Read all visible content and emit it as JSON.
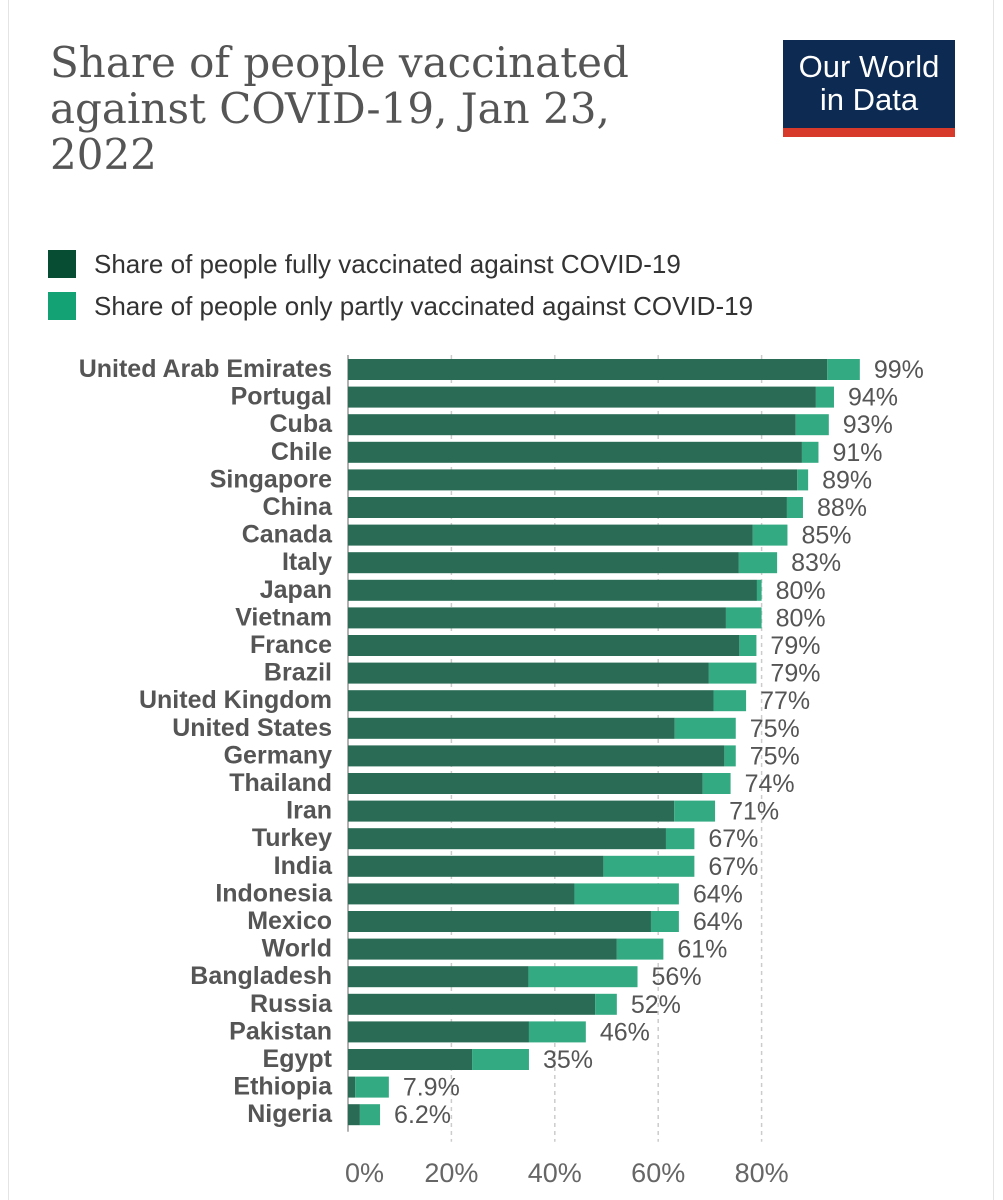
{
  "header": {
    "title": "Share of people vaccinated against COVID-19, Jan 23, 2022",
    "logo_line1": "Our World",
    "logo_line2": "in Data"
  },
  "colors": {
    "fully": "#2a6b55",
    "partly": "#33aa82",
    "fully_legend": "#064d33",
    "partly_legend": "#13a274",
    "logo_bg": "#0d2a52",
    "logo_accent": "#d73a2a"
  },
  "chart_data": {
    "type": "bar",
    "orientation": "horizontal",
    "stacked": true,
    "title": "Share of people vaccinated against COVID-19, Jan 23, 2022",
    "legend_position": "top",
    "grid": true,
    "xlim": [
      0,
      100
    ],
    "x_ticks": [
      "0%",
      "20%",
      "40%",
      "60%",
      "80%"
    ],
    "categories": [
      "United Arab Emirates",
      "Portugal",
      "Cuba",
      "Chile",
      "Singapore",
      "China",
      "Canada",
      "Italy",
      "Japan",
      "Vietnam",
      "France",
      "Brazil",
      "United Kingdom",
      "United States",
      "Germany",
      "Thailand",
      "Iran",
      "Turkey",
      "India",
      "Indonesia",
      "Mexico",
      "World",
      "Bangladesh",
      "Russia",
      "Pakistan",
      "Egypt",
      "Ethiopia",
      "Nigeria"
    ],
    "series": [
      {
        "name": "Share of people fully vaccinated against COVID-19",
        "values": [
          92.7,
          90.5,
          86.6,
          87.8,
          86.9,
          84.9,
          78.3,
          75.6,
          79.1,
          73.1,
          75.7,
          69.8,
          70.7,
          63.2,
          72.8,
          68.6,
          63.1,
          61.5,
          49.4,
          43.8,
          58.6,
          52.0,
          34.9,
          47.8,
          35.0,
          24.0,
          1.4,
          2.3
        ]
      },
      {
        "name": "Share of people only partly vaccinated against COVID-19",
        "values": [
          6.3,
          3.5,
          6.4,
          3.2,
          2.1,
          3.1,
          6.7,
          7.4,
          0.9,
          6.9,
          3.3,
          9.2,
          6.3,
          11.8,
          2.2,
          5.4,
          7.9,
          5.5,
          17.6,
          20.2,
          5.4,
          9.0,
          21.1,
          4.2,
          11.0,
          11.0,
          6.5,
          3.9
        ]
      }
    ],
    "total_labels": [
      "99%",
      "94%",
      "93%",
      "91%",
      "89%",
      "88%",
      "85%",
      "83%",
      "80%",
      "80%",
      "79%",
      "79%",
      "77%",
      "75%",
      "75%",
      "74%",
      "71%",
      "67%",
      "67%",
      "64%",
      "64%",
      "61%",
      "56%",
      "52%",
      "46%",
      "35%",
      "7.9%",
      "6.2%"
    ]
  }
}
